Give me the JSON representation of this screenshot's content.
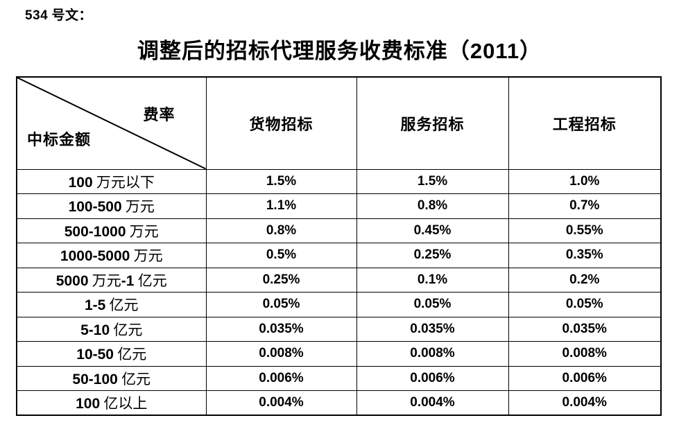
{
  "page": {
    "doc_label": "534 号文：",
    "title": "调整后的招标代理服务收费标准（2011）"
  },
  "table": {
    "corner": {
      "top_right": "费率",
      "bottom_left": "中标金额"
    },
    "columns": [
      "货物招标",
      "服务招标",
      "工程招标"
    ],
    "rows": [
      {
        "amount": "100 万元以下",
        "goods": "1.5%",
        "services": "1.5%",
        "works": "1.0%"
      },
      {
        "amount": "100-500 万元",
        "goods": "1.1%",
        "services": "0.8%",
        "works": "0.7%"
      },
      {
        "amount": "500-1000 万元",
        "goods": "0.8%",
        "services": "0.45%",
        "works": "0.55%"
      },
      {
        "amount": "1000-5000 万元",
        "goods": "0.5%",
        "services": "0.25%",
        "works": "0.35%"
      },
      {
        "amount": "5000 万元-1 亿元",
        "goods": "0.25%",
        "services": "0.1%",
        "works": "0.2%"
      },
      {
        "amount": "1-5 亿元",
        "goods": "0.05%",
        "services": "0.05%",
        "works": "0.05%"
      },
      {
        "amount": "5-10 亿元",
        "goods": "0.035%",
        "services": "0.035%",
        "works": "0.035%"
      },
      {
        "amount": "10-50 亿元",
        "goods": "0.008%",
        "services": "0.008%",
        "works": "0.008%"
      },
      {
        "amount": "50-100 亿元",
        "goods": "0.006%",
        "services": "0.006%",
        "works": "0.006%"
      },
      {
        "amount": "100 亿以上",
        "goods": "0.004%",
        "services": "0.004%",
        "works": "0.004%"
      }
    ]
  },
  "colors": {
    "text": "#000000",
    "background": "#ffffff",
    "border": "#000000"
  }
}
